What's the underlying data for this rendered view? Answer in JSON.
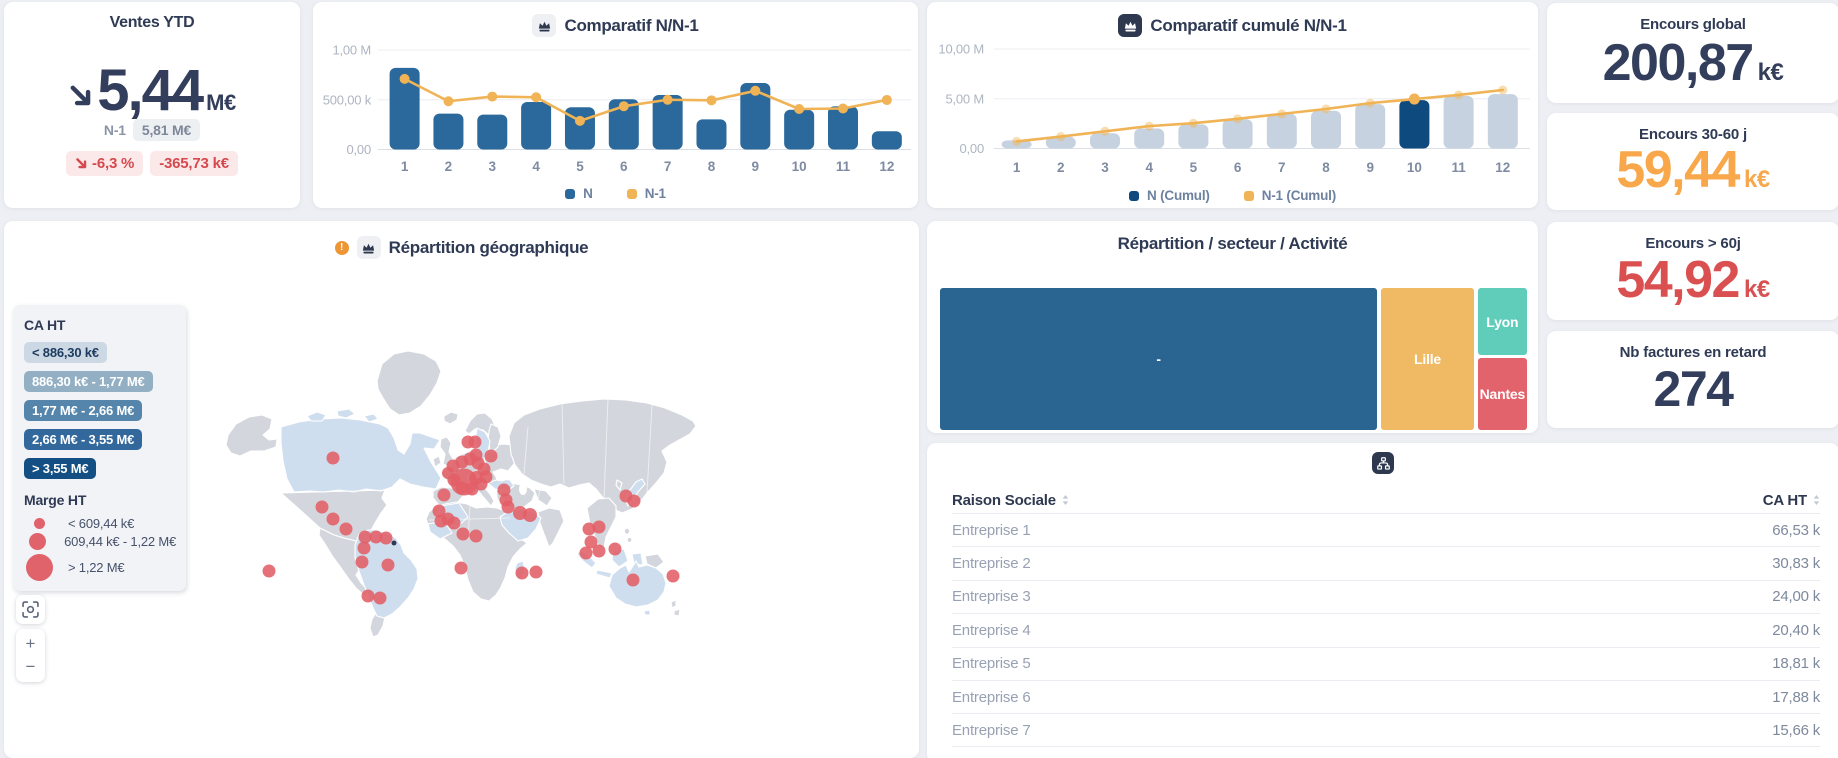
{
  "accent_colors": {
    "bar_blue": "#2b689b",
    "bar_light": "#c6d2df",
    "bar_highlight": "#0e4a7d",
    "line_orange": "#f0b355",
    "kpi_navy": "#333e5c",
    "kpi_orange": "#f8a84b",
    "kpi_red": "#da5050",
    "negative_red": "#d5494e"
  },
  "ventes": {
    "title": "Ventes YTD",
    "value": "5,44",
    "unit": "M€",
    "trend_icon": "arrow-down-right",
    "n1_label": "N-1",
    "n1_value": "5,81 M€",
    "delta_pct": "-6,3 %",
    "delta_abs": "-365,73 k€"
  },
  "kpis": [
    {
      "title": "Encours global",
      "value": "200,87",
      "unit": "k€",
      "color": "#333e5c"
    },
    {
      "title": "Encours 30-60 j",
      "value": "59,44",
      "unit": "k€",
      "color": "#f8a84b"
    },
    {
      "title": "Encours > 60j",
      "value": "54,92",
      "unit": "k€",
      "color": "#da5050"
    },
    {
      "title": "Nb factures en retard",
      "value": "274",
      "unit": "",
      "color": "#333e5c"
    }
  ],
  "chart_data": [
    {
      "id": "nn1",
      "type": "bar",
      "title": "Comparatif N/N-1",
      "icon": "crown-icon",
      "icon_style": "light",
      "categories": [
        "1",
        "2",
        "3",
        "4",
        "5",
        "6",
        "7",
        "8",
        "9",
        "10",
        "11",
        "12"
      ],
      "unit": "k€",
      "ylim": [
        0,
        1000
      ],
      "yticks": [
        {
          "v": 0,
          "label": "0,00"
        },
        {
          "v": 500,
          "label": "500,00 k"
        },
        {
          "v": 1000,
          "label": "1,00 M"
        }
      ],
      "grid": true,
      "legend_position": "bottom",
      "series": [
        {
          "name": "N",
          "type": "bar",
          "color": "#2b689b",
          "legend_color": "#2b689b",
          "values": [
            820,
            360,
            350,
            478,
            425,
            505,
            548,
            303,
            668,
            400,
            433,
            183
          ]
        },
        {
          "name": "N-1",
          "type": "line",
          "color": "#f0b355",
          "legend_color": "#f0b355",
          "dot_opacity": 1,
          "values": [
            710,
            485,
            532,
            525,
            288,
            435,
            500,
            494,
            590,
            407,
            412,
            498
          ]
        }
      ]
    },
    {
      "id": "cumul",
      "type": "bar",
      "title": "Comparatif cumulé N/N-1",
      "icon": "crown-icon",
      "icon_style": "dark",
      "categories": [
        "1",
        "2",
        "3",
        "4",
        "5",
        "6",
        "7",
        "8",
        "9",
        "10",
        "11",
        "12"
      ],
      "unit": "M€",
      "ylim": [
        0,
        10
      ],
      "yticks": [
        {
          "v": 0,
          "label": "0,00"
        },
        {
          "v": 5,
          "label": "5,00 M"
        },
        {
          "v": 10,
          "label": "10,00 M"
        }
      ],
      "grid": true,
      "highlight_index": 9,
      "legend_position": "bottom",
      "series": [
        {
          "name": "N (Cumul)",
          "type": "bar",
          "color": "#c6d2df",
          "highlight_color": "#0e4a7d",
          "legend_color": "#0e4a7d",
          "values": [
            0.82,
            1.18,
            1.53,
            2.01,
            2.43,
            2.94,
            3.49,
            3.79,
            4.46,
            4.86,
            5.29,
            5.47
          ]
        },
        {
          "name": "N-1 (Cumul)",
          "type": "line",
          "color": "#f0b355",
          "legend_color": "#f0b355",
          "dot_opacity": 0.45,
          "values": [
            0.71,
            1.2,
            1.73,
            2.25,
            2.54,
            2.98,
            3.48,
            3.97,
            4.56,
            4.97,
            5.38,
            5.88
          ]
        }
      ]
    },
    {
      "id": "treemap",
      "type": "treemap",
      "title": "Répartition / secteur / Activité",
      "nodes": [
        {
          "label": "-",
          "color": "#2a6591",
          "x": 0,
          "y": 0,
          "w": 0.745,
          "h": 1
        },
        {
          "label": "Lille",
          "color": "#f0b963",
          "x": 0.752,
          "y": 0,
          "w": 0.157,
          "h": 1
        },
        {
          "label": "Lyon",
          "color": "#60ccba",
          "x": 0.916,
          "y": 0,
          "w": 0.084,
          "h": 0.475
        },
        {
          "label": "Nantes",
          "color": "#e2636c",
          "x": 0.916,
          "y": 0.494,
          "w": 0.084,
          "h": 0.506
        }
      ]
    },
    {
      "id": "map",
      "type": "map",
      "title": "Répartition géographique",
      "icons": [
        "warning-icon",
        "crown-icon"
      ],
      "bubble_color": "#e25f66",
      "marker_color": "#2f3a55",
      "bubbles": [
        [
          460,
          261,
          13.5
        ],
        [
          449,
          245,
          6.5
        ],
        [
          458,
          241,
          6.5
        ],
        [
          466,
          238,
          6.5
        ],
        [
          474,
          242,
          6.5
        ],
        [
          480,
          248,
          6.5
        ],
        [
          482,
          256,
          6.5
        ],
        [
          477,
          263,
          6.5
        ],
        [
          468,
          268,
          6.5
        ],
        [
          458,
          267,
          6.5
        ],
        [
          450,
          259,
          6.5
        ],
        [
          444,
          252,
          6
        ],
        [
          472,
          257,
          7
        ],
        [
          329,
          237,
          6.5
        ],
        [
          318,
          286,
          6.5
        ],
        [
          329,
          298,
          6.5
        ],
        [
          342,
          308,
          6.5
        ],
        [
          361,
          316,
          6.5
        ],
        [
          372,
          316,
          6.5
        ],
        [
          382,
          317,
          6.5
        ],
        [
          360,
          327,
          6.5
        ],
        [
          358,
          341,
          6.5
        ],
        [
          384,
          344,
          6.5
        ],
        [
          265,
          350,
          6.5
        ],
        [
          364,
          375,
          6.5
        ],
        [
          376,
          377,
          6.5
        ],
        [
          464,
          221,
          6.5
        ],
        [
          471,
          221,
          6.5
        ],
        [
          472,
          234,
          6.5
        ],
        [
          487,
          235,
          6.5
        ],
        [
          440,
          274,
          6.5
        ],
        [
          435,
          290,
          6.5
        ],
        [
          437,
          300,
          6.5
        ],
        [
          444,
          298,
          6.5
        ],
        [
          450,
          302,
          6.5
        ],
        [
          459,
          313,
          6.5
        ],
        [
          472,
          315,
          6.5
        ],
        [
          500,
          269,
          6.5
        ],
        [
          502,
          279,
          6.5
        ],
        [
          504,
          286,
          6.5
        ],
        [
          516,
          292,
          7
        ],
        [
          526,
          294,
          7
        ],
        [
          457,
          347,
          6.5
        ],
        [
          518,
          352,
          6.5
        ],
        [
          532,
          351,
          6.5
        ],
        [
          585,
          308,
          6.5
        ],
        [
          595,
          306,
          6.5
        ],
        [
          587,
          321,
          6.5
        ],
        [
          582,
          332,
          6.5
        ],
        [
          595,
          330,
          6.5
        ],
        [
          611,
          328,
          6.5
        ],
        [
          622,
          275,
          6.5
        ],
        [
          630,
          280,
          6.5
        ],
        [
          629,
          359,
          6.5
        ],
        [
          669,
          355,
          6.5
        ]
      ],
      "markers": [
        [
          390,
          322,
          2.5
        ]
      ]
    }
  ],
  "map_legend": {
    "ca_title": "CA HT",
    "ca_classes": [
      {
        "label": "< 886,30 k€",
        "bg": "#ccd9e4",
        "text": "#1d3a5f"
      },
      {
        "label": "886,30 k€ - 1,77 M€",
        "bg": "#92afc4",
        "text": "#ffffff"
      },
      {
        "label": "1,77 M€ - 2,66 M€",
        "bg": "#5585ab",
        "text": "#ffffff"
      },
      {
        "label": "2,66 M€ - 3,55 M€",
        "bg": "#32689b",
        "text": "#ffffff"
      },
      {
        "label": "> 3,55 M€",
        "bg": "#144f83",
        "text": "#ffffff"
      }
    ],
    "marge_title": "Marge HT",
    "marge_classes": [
      {
        "label": "< 609,44 k€",
        "r": 5.5
      },
      {
        "label": "609,44 k€ - 1,22 M€",
        "r": 8.5
      },
      {
        "label": "> 1,22 M€",
        "r": 13.5
      }
    ],
    "controls": {
      "reset": "reset-zoom",
      "zoom_in": "+",
      "zoom_out": "−"
    }
  },
  "table": {
    "export_icon": "hierarchy-icon",
    "columns": [
      "Raison Sociale",
      "CA HT"
    ],
    "rows": [
      {
        "name": "Entreprise 1",
        "ca": "66,53 k"
      },
      {
        "name": "Entreprise 2",
        "ca": "30,83 k"
      },
      {
        "name": "Entreprise 3",
        "ca": "24,00 k"
      },
      {
        "name": "Entreprise 4",
        "ca": "20,40 k"
      },
      {
        "name": "Entreprise 5",
        "ca": "18,81 k"
      },
      {
        "name": "Entreprise 6",
        "ca": "17,88 k"
      },
      {
        "name": "Entreprise 7",
        "ca": "15,66 k"
      }
    ]
  }
}
